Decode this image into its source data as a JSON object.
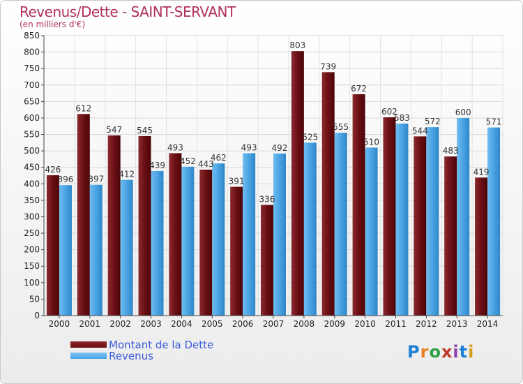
{
  "title": "Revenus/Dette - SAINT-SERVANT",
  "subtitle": "(en milliers d'€)",
  "colors": {
    "dette": "#6b0f14",
    "revenus": "#4aa3e3",
    "title": "#b03060",
    "legend_text": "#3b5bdb"
  },
  "legend": {
    "dette_label": "Montant de la Dette",
    "revenus_label": "Revenus"
  },
  "logo": {
    "text": "Proxiti"
  },
  "chart_data": {
    "type": "bar",
    "title": "Revenus/Dette - SAINT-SERVANT",
    "subtitle": "(en milliers d'€)",
    "categories": [
      "2000",
      "2001",
      "2002",
      "2003",
      "2004",
      "2005",
      "2006",
      "2007",
      "2008",
      "2009",
      "2010",
      "2011",
      "2012",
      "2013",
      "2014"
    ],
    "series": [
      {
        "name": "Montant de la Dette",
        "values": [
          426,
          612,
          547,
          545,
          493,
          443,
          391,
          336,
          803,
          739,
          672,
          602,
          544,
          483,
          419
        ]
      },
      {
        "name": "Revenus",
        "values": [
          396,
          397,
          412,
          439,
          452,
          462,
          493,
          492,
          525,
          555,
          510,
          583,
          572,
          600,
          571
        ]
      }
    ],
    "ylim": [
      0,
      850
    ],
    "yticks": [
      0,
      50,
      100,
      150,
      200,
      250,
      300,
      350,
      400,
      450,
      500,
      550,
      600,
      650,
      700,
      750,
      800,
      850
    ],
    "grid": true,
    "legend_position": "bottom-left"
  }
}
